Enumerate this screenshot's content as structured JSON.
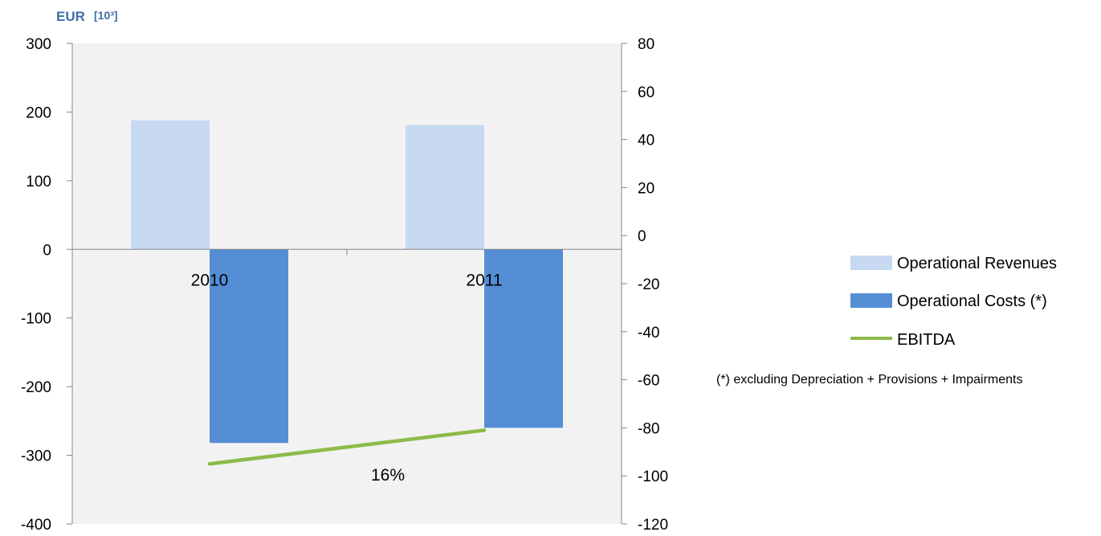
{
  "chart_data": {
    "type": "bar",
    "unit": "EUR",
    "unit_scale": "[10³]",
    "categories": [
      "2010",
      "2011"
    ],
    "series": [
      {
        "name": "Operational Revenues",
        "axis": "left",
        "kind": "bar",
        "color": "#c6d9f1",
        "values": [
          188,
          181
        ]
      },
      {
        "name": "Operational Costs (*)",
        "axis": "left",
        "kind": "bar",
        "color": "#558ed5",
        "values": [
          -282,
          -260
        ]
      },
      {
        "name": "EBITDA",
        "axis": "right",
        "kind": "line",
        "color": "#8dbb49",
        "values": [
          -95,
          -81
        ]
      }
    ],
    "y_left": {
      "min": -400,
      "max": 300,
      "ticks": [
        300,
        200,
        100,
        0,
        -100,
        -200,
        -300,
        -400
      ]
    },
    "y_right": {
      "min": -120,
      "max": 80,
      "ticks": [
        80,
        60,
        40,
        20,
        0,
        -20,
        -40,
        -60,
        -80,
        -100,
        -120
      ]
    },
    "annotations": [
      "16%"
    ],
    "footnote": "(*) excluding Depreciation + Provisions + Impairments",
    "legend_position": "right",
    "plot_background": "#f2f2f2",
    "grid": false
  }
}
